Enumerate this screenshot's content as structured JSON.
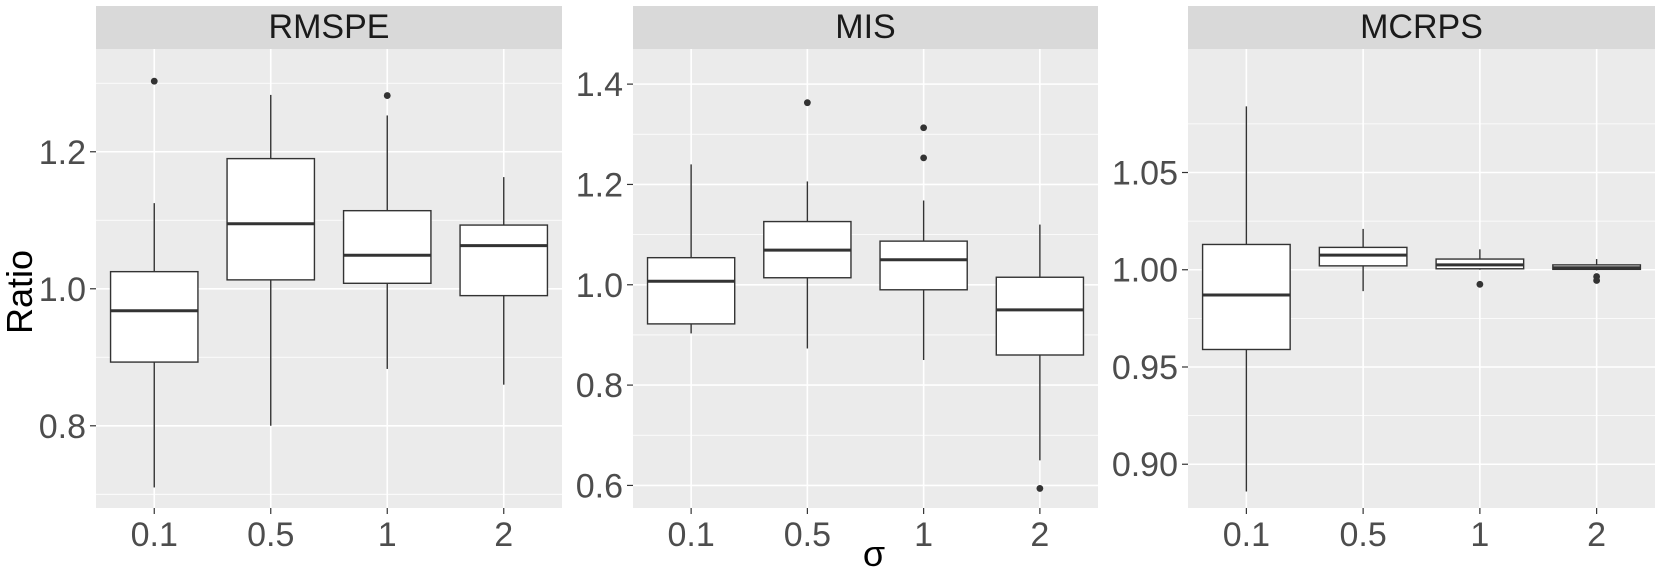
{
  "chart_data": [
    {
      "type": "boxplot",
      "title": "RMSPE",
      "categories": [
        "0.1",
        "0.5",
        "1",
        "2"
      ],
      "ylim": [
        0.68,
        1.35
      ],
      "yticks": [
        0.8,
        1.0,
        1.2
      ],
      "ytick_labels": [
        "0.8",
        "1.0",
        "1.2"
      ],
      "boxes": [
        {
          "min": 0.71,
          "q1": 0.893,
          "median": 0.968,
          "q3": 1.025,
          "max": 1.125,
          "outliers": [
            1.303
          ]
        },
        {
          "min": 0.8,
          "q1": 1.013,
          "median": 1.095,
          "q3": 1.19,
          "max": 1.283,
          "outliers": []
        },
        {
          "min": 0.883,
          "q1": 1.008,
          "median": 1.049,
          "q3": 1.114,
          "max": 1.253,
          "outliers": [
            1.282
          ]
        },
        {
          "min": 0.86,
          "q1": 0.99,
          "median": 1.063,
          "q3": 1.093,
          "max": 1.163,
          "outliers": []
        }
      ]
    },
    {
      "type": "boxplot",
      "title": "MIS",
      "categories": [
        "0.1",
        "0.5",
        "1",
        "2"
      ],
      "ylim": [
        0.555,
        1.47
      ],
      "yticks": [
        0.6,
        0.8,
        1.0,
        1.2,
        1.4
      ],
      "ytick_labels": [
        "0.6",
        "0.8",
        "1.0",
        "1.2",
        "1.4"
      ],
      "boxes": [
        {
          "min": 0.903,
          "q1": 0.922,
          "median": 1.007,
          "q3": 1.054,
          "max": 1.24,
          "outliers": []
        },
        {
          "min": 0.873,
          "q1": 1.014,
          "median": 1.069,
          "q3": 1.126,
          "max": 1.206,
          "outliers": [
            1.363
          ]
        },
        {
          "min": 0.85,
          "q1": 0.99,
          "median": 1.05,
          "q3": 1.087,
          "max": 1.168,
          "outliers": [
            1.313,
            1.253
          ]
        },
        {
          "min": 0.65,
          "q1": 0.86,
          "median": 0.95,
          "q3": 1.015,
          "max": 1.12,
          "outliers": [
            0.594
          ]
        }
      ]
    },
    {
      "type": "boxplot",
      "title": "MCRPS",
      "categories": [
        "0.1",
        "0.5",
        "1",
        "2"
      ],
      "ylim": [
        0.8775,
        1.1135
      ],
      "yticks": [
        0.9,
        0.95,
        1.0,
        1.05
      ],
      "ytick_labels": [
        "0.90",
        "0.95",
        "1.00",
        "1.05"
      ],
      "boxes": [
        {
          "min": 0.886,
          "q1": 0.959,
          "median": 0.987,
          "q3": 1.013,
          "max": 1.084,
          "outliers": []
        },
        {
          "min": 0.989,
          "q1": 1.002,
          "median": 1.0075,
          "q3": 1.0115,
          "max": 1.021,
          "outliers": []
        },
        {
          "min": 1.0,
          "q1": 1.0005,
          "median": 1.0025,
          "q3": 1.0055,
          "max": 1.0105,
          "outliers": [
            0.9925
          ]
        },
        {
          "min": 0.9997,
          "q1": 1.0002,
          "median": 1.001,
          "q3": 1.0025,
          "max": 1.0055,
          "outliers": [
            0.9965,
            0.9945
          ]
        }
      ]
    }
  ],
  "xlabel": "σ",
  "ylabel": "Ratio"
}
